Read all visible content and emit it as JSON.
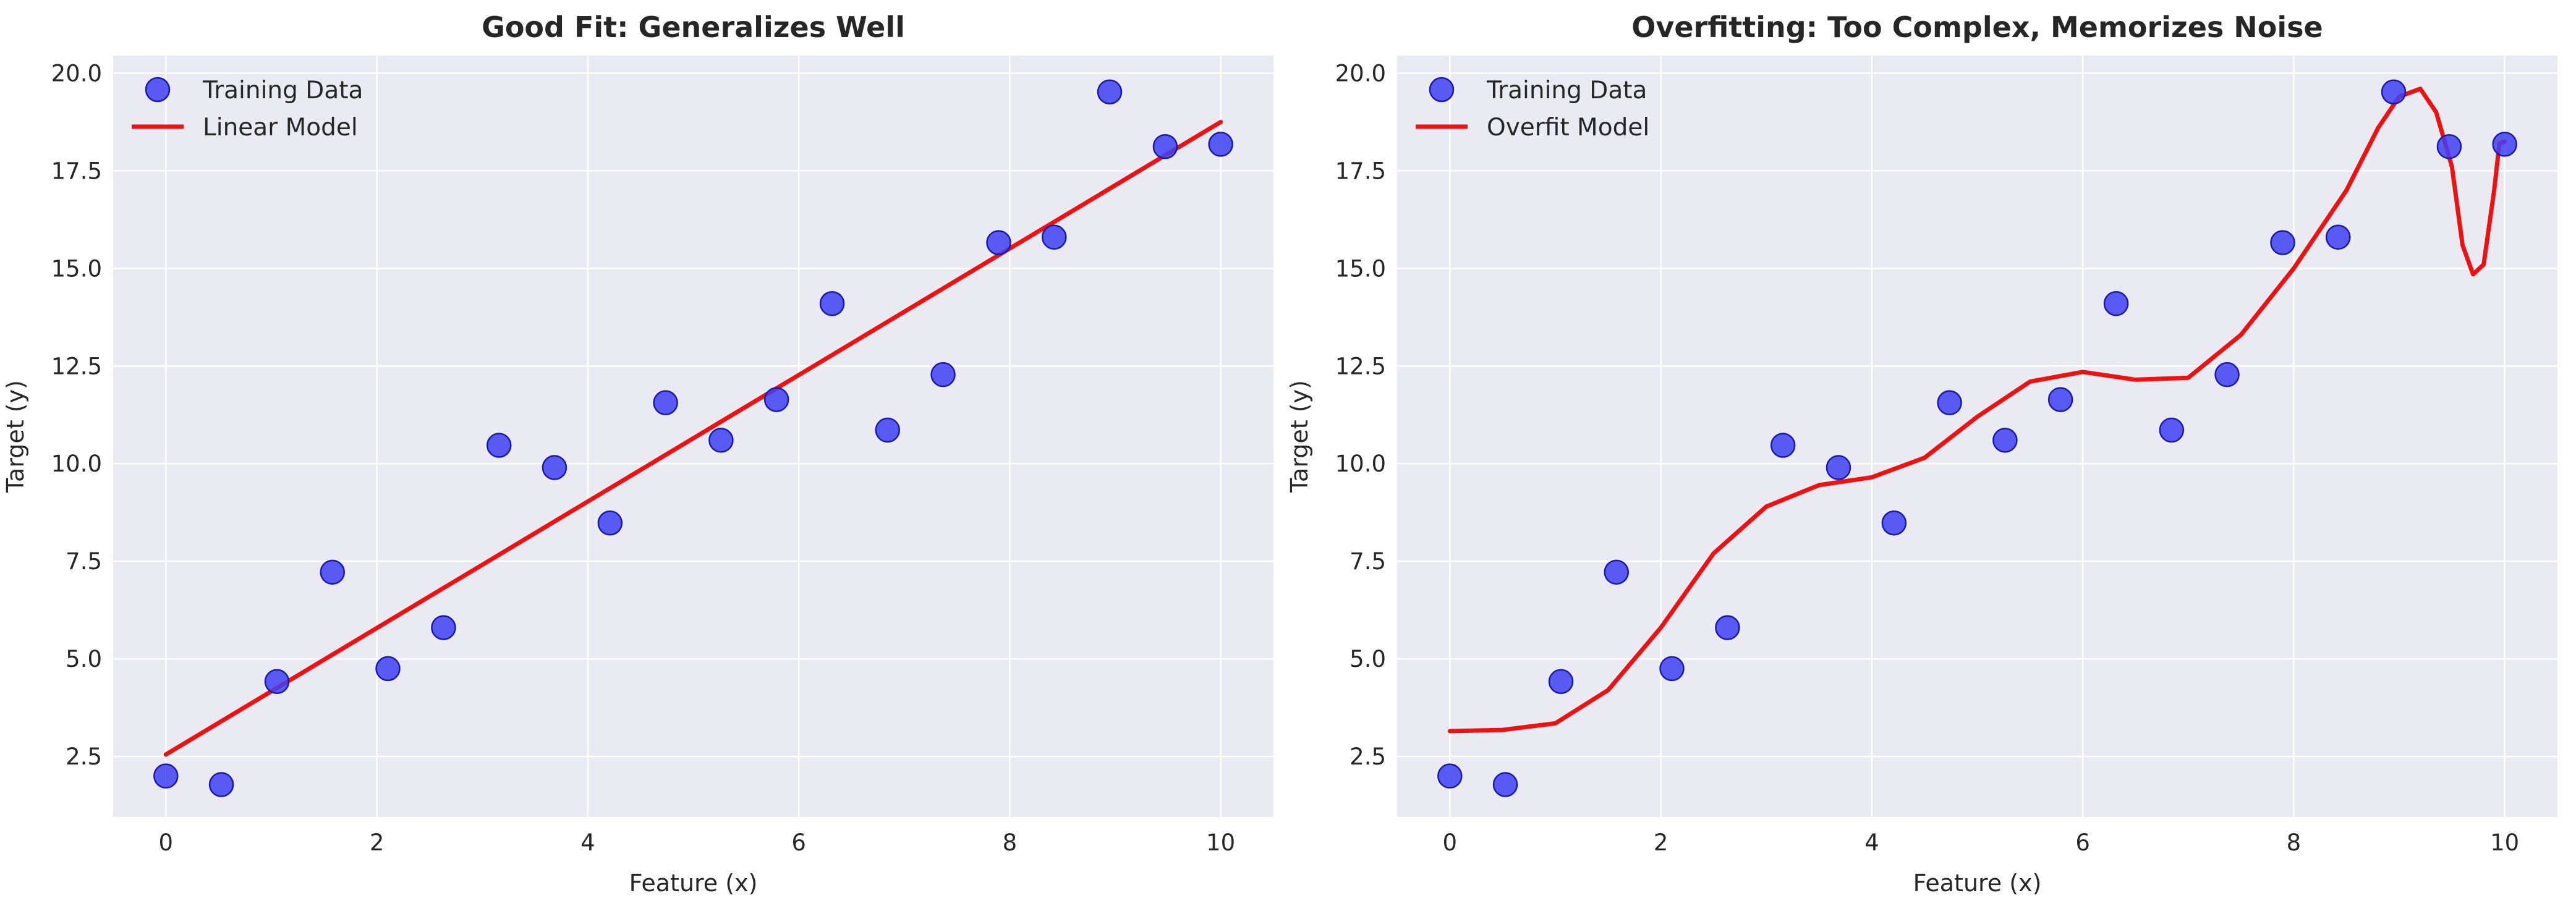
{
  "chart_data": [
    {
      "type": "scatter",
      "title": "Good Fit: Generalizes Well",
      "xlabel": "Feature (x)",
      "ylabel": "Target (y)",
      "xlim": [
        -0.5,
        10.5
      ],
      "ylim": [
        0.95,
        20.45
      ],
      "xticks": [
        0,
        2,
        4,
        6,
        8,
        10
      ],
      "yticks": [
        2.5,
        5.0,
        7.5,
        10.0,
        12.5,
        15.0,
        17.5,
        20.0
      ],
      "xtick_labels": [
        "0",
        "2",
        "4",
        "6",
        "8",
        "10"
      ],
      "ytick_labels": [
        "2.5",
        "5.0",
        "7.5",
        "10.0",
        "12.5",
        "15.0",
        "17.5",
        "20.0"
      ],
      "grid": true,
      "legend": "top-left",
      "series": [
        {
          "name": "Training Data",
          "kind": "scatter",
          "color": "#3f3ff5",
          "x": [
            0,
            0.526,
            1.053,
            1.579,
            2.105,
            2.632,
            3.158,
            3.684,
            4.211,
            4.737,
            5.263,
            5.789,
            6.316,
            6.842,
            7.368,
            7.895,
            8.421,
            8.947,
            9.474,
            10
          ],
          "y": [
            2.0,
            1.78,
            4.42,
            7.22,
            4.75,
            5.8,
            10.47,
            9.9,
            8.48,
            11.56,
            10.6,
            11.64,
            14.1,
            10.86,
            12.28,
            15.66,
            15.8,
            19.52,
            18.12,
            18.18
          ]
        },
        {
          "name": "Linear Model",
          "kind": "line",
          "color": "#ee1111",
          "x": [
            0,
            10
          ],
          "y": [
            2.55,
            18.75
          ]
        }
      ]
    },
    {
      "type": "scatter",
      "title": "Overfitting: Too Complex, Memorizes Noise",
      "xlabel": "Feature (x)",
      "ylabel": "Target (y)",
      "xlim": [
        -0.5,
        10.5
      ],
      "ylim": [
        0.95,
        20.45
      ],
      "xticks": [
        0,
        2,
        4,
        6,
        8,
        10
      ],
      "yticks": [
        2.5,
        5.0,
        7.5,
        10.0,
        12.5,
        15.0,
        17.5,
        20.0
      ],
      "xtick_labels": [
        "0",
        "2",
        "4",
        "6",
        "8",
        "10"
      ],
      "ytick_labels": [
        "2.5",
        "5.0",
        "7.5",
        "10.0",
        "12.5",
        "15.0",
        "17.5",
        "20.0"
      ],
      "grid": true,
      "legend": "top-left",
      "series": [
        {
          "name": "Training Data",
          "kind": "scatter",
          "color": "#3f3ff5",
          "x": [
            0,
            0.526,
            1.053,
            1.579,
            2.105,
            2.632,
            3.158,
            3.684,
            4.211,
            4.737,
            5.263,
            5.789,
            6.316,
            6.842,
            7.368,
            7.895,
            8.421,
            8.947,
            9.474,
            10
          ],
          "y": [
            2.0,
            1.78,
            4.42,
            7.22,
            4.75,
            5.8,
            10.47,
            9.9,
            8.48,
            11.56,
            10.6,
            11.64,
            14.1,
            10.86,
            12.28,
            15.66,
            15.8,
            19.52,
            18.12,
            18.18
          ]
        },
        {
          "name": "Overfit Model",
          "kind": "line",
          "color": "#ee1111",
          "x": [
            0,
            0.5,
            1.0,
            1.5,
            2.0,
            2.5,
            3.0,
            3.5,
            4.0,
            4.5,
            5.0,
            5.5,
            6.0,
            6.5,
            7.0,
            7.5,
            8.0,
            8.5,
            8.8,
            9.0,
            9.2,
            9.35,
            9.5,
            9.6,
            9.7,
            9.8,
            9.9,
            9.95,
            10.0
          ],
          "y": [
            3.15,
            3.18,
            3.35,
            4.2,
            5.8,
            7.7,
            8.9,
            9.45,
            9.65,
            10.15,
            11.2,
            12.1,
            12.35,
            12.15,
            12.2,
            13.3,
            15.0,
            17.0,
            18.6,
            19.4,
            19.6,
            19.0,
            17.6,
            15.6,
            14.85,
            15.1,
            17.0,
            18.2,
            18.25
          ]
        }
      ]
    }
  ]
}
